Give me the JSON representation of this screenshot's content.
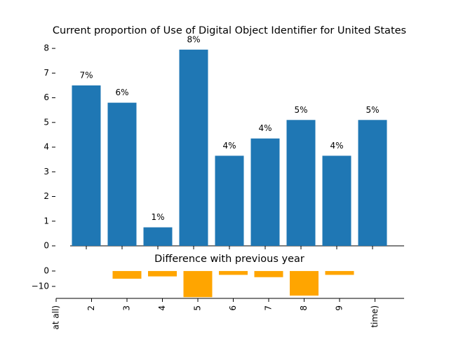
{
  "chart_data": [
    {
      "type": "bar",
      "title": "Current proportion of Use of Digital Object Identifier for United States",
      "values": [
        null,
        6.5,
        5.8,
        0.75,
        7.95,
        3.65,
        4.35,
        5.1,
        3.65,
        5.1
      ],
      "value_labels": [
        null,
        "7%",
        "6%",
        "1%",
        "8%",
        "4%",
        "4%",
        "5%",
        "4%",
        "5%"
      ],
      "color": "#1f77b4",
      "ylim": [
        0,
        8.4
      ],
      "yticks": [
        0,
        1,
        2,
        3,
        4,
        5,
        6,
        7,
        8
      ]
    },
    {
      "type": "bar",
      "title": "Difference with previous year",
      "categories": [
        "at all)",
        "2",
        "3",
        "4",
        "5",
        "6",
        "7",
        "8",
        "9",
        "time)"
      ],
      "values": [
        null,
        null,
        -5,
        -3.5,
        -17,
        -2.5,
        -4,
        -16,
        -2.5,
        null
      ],
      "color": "#ffa500",
      "ylim": [
        -17.8,
        10
      ],
      "yticks": [
        0,
        {
          "value": -10,
          "label": "−10"
        }
      ]
    }
  ]
}
